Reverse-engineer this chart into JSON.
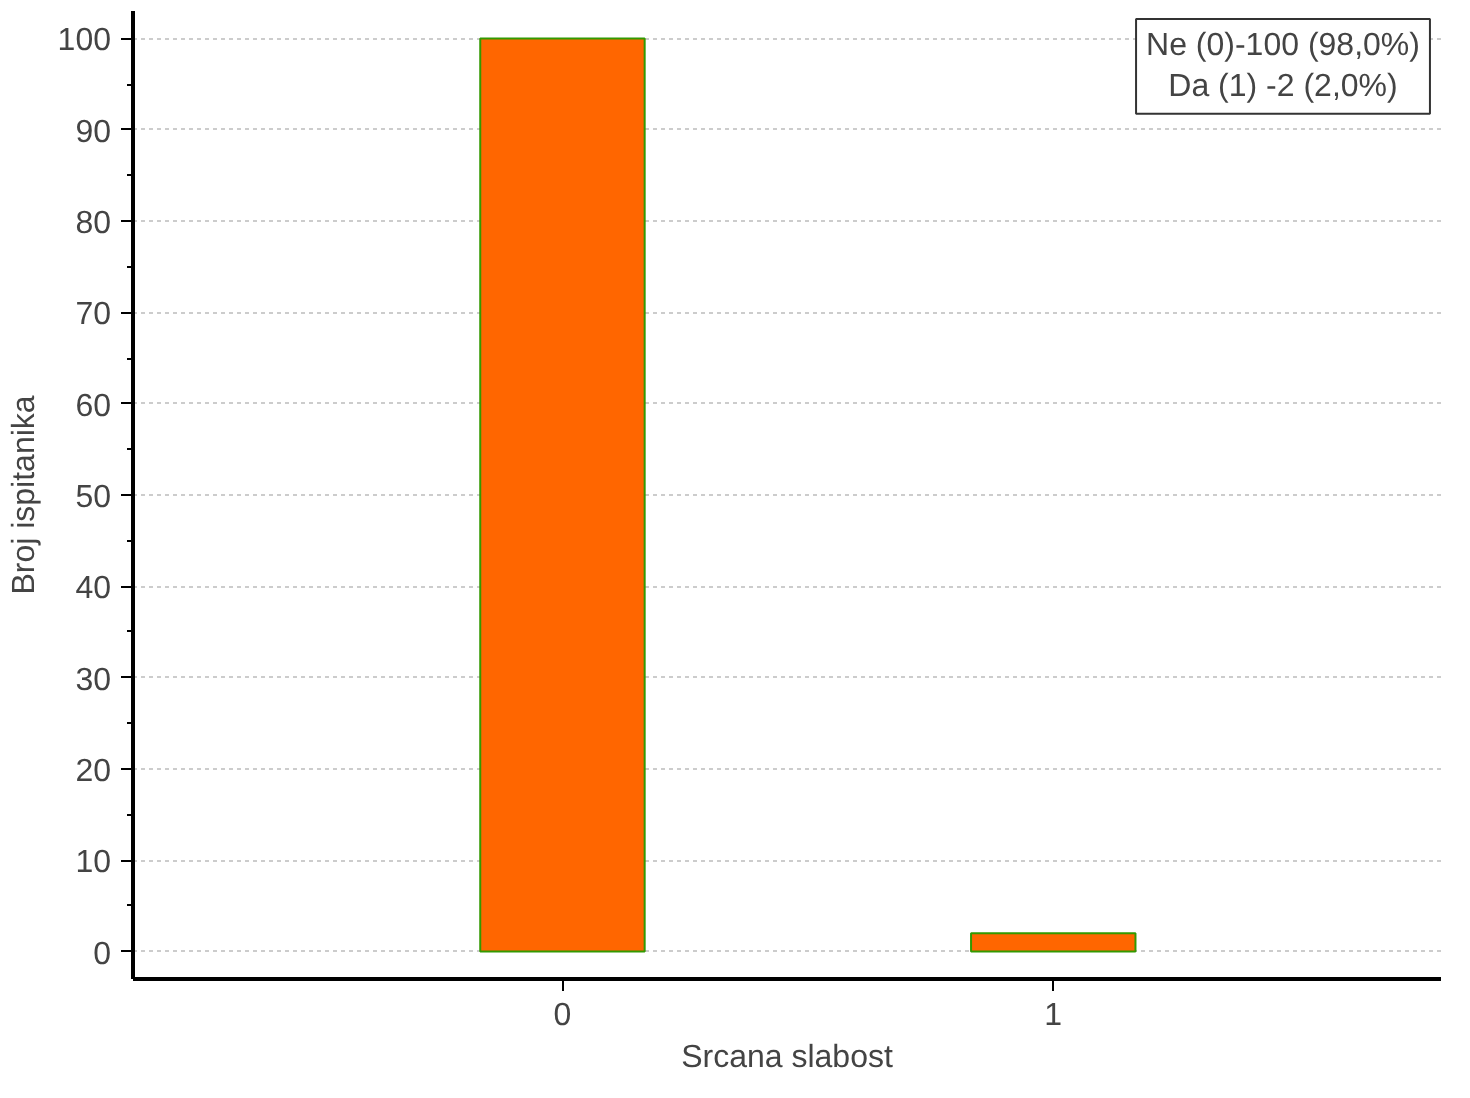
{
  "chart_data": {
    "type": "bar",
    "xlabel": "Srcana slabost",
    "ylabel": "Broj ispitanika",
    "categories": [
      "0",
      "1"
    ],
    "values": [
      100,
      2
    ],
    "color": "#ff6600",
    "ylim": [
      -3,
      103
    ],
    "yticks": [
      0,
      10,
      20,
      30,
      40,
      50,
      60,
      70,
      80,
      90,
      100
    ],
    "grid": "y",
    "annotations": [
      "Ne (0)-100 (98,0%)",
      "Da (1) -2 (2,0%)"
    ]
  }
}
